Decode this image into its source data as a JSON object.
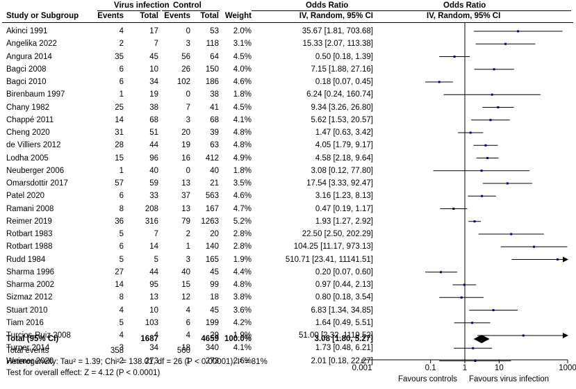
{
  "header": {
    "group_virus": "Virus infection",
    "group_control": "Control",
    "group_or": "Odds Ratio",
    "group_or_plot": "Odds Ratio",
    "col_study": "Study or Subgroup",
    "col_events1": "Events",
    "col_total1": "Total",
    "col_events2": "Events",
    "col_total2": "Total",
    "col_weight": "Weight",
    "col_or": "IV, Random, 95% CI",
    "col_or_plot": "IV, Random, 95% CI"
  },
  "rows": [
    {
      "study": "Akinci 1991",
      "e1": "4",
      "t1": "17",
      "e2": "0",
      "t2": "53",
      "weight": "2.0%",
      "ci_text": "35.67 [1.81, 703.68]"
    },
    {
      "study": "Angelika 2022",
      "e1": "2",
      "t1": "7",
      "e2": "3",
      "t2": "118",
      "weight": "3.1%",
      "ci_text": "15.33 [2.07, 113.38]"
    },
    {
      "study": "Angura 2014",
      "e1": "35",
      "t1": "45",
      "e2": "56",
      "t2": "64",
      "weight": "4.5%",
      "ci_text": "0.50 [0.18, 1.39]"
    },
    {
      "study": "Bagci 2008",
      "e1": "6",
      "t1": "10",
      "e2": "26",
      "t2": "150",
      "weight": "4.0%",
      "ci_text": "7.15 [1.88, 27.16]"
    },
    {
      "study": "Bagci 2010",
      "e1": "6",
      "t1": "34",
      "e2": "102",
      "t2": "186",
      "weight": "4.6%",
      "ci_text": "0.18 [0.07, 0.45]"
    },
    {
      "study": "Birenbaum 1997",
      "e1": "1",
      "t1": "19",
      "e2": "0",
      "t2": "38",
      "weight": "1.8%",
      "ci_text": "6.24 [0.24, 160.74]"
    },
    {
      "study": "Chany 1982",
      "e1": "25",
      "t1": "38",
      "e2": "7",
      "t2": "41",
      "weight": "4.5%",
      "ci_text": "9.34 [3.26, 26.80]"
    },
    {
      "study": "Chappé 2011",
      "e1": "14",
      "t1": "68",
      "e2": "3",
      "t2": "68",
      "weight": "4.1%",
      "ci_text": "5.62 [1.53, 20.57]"
    },
    {
      "study": "Cheng 2020",
      "e1": "31",
      "t1": "51",
      "e2": "20",
      "t2": "39",
      "weight": "4.8%",
      "ci_text": "1.47 [0.63, 3.42]"
    },
    {
      "study": "de Villiers 2012",
      "e1": "28",
      "t1": "44",
      "e2": "19",
      "t2": "63",
      "weight": "4.8%",
      "ci_text": "4.05 [1.79, 9.17]"
    },
    {
      "study": "Lodha 2005",
      "e1": "15",
      "t1": "96",
      "e2": "16",
      "t2": "412",
      "weight": "4.9%",
      "ci_text": "4.58 [2.18, 9.64]"
    },
    {
      "study": "Neuberger 2006",
      "e1": "1",
      "t1": "40",
      "e2": "0",
      "t2": "40",
      "weight": "1.8%",
      "ci_text": "3.08 [0.12, 77.80]"
    },
    {
      "study": "Omarsdottir 2017",
      "e1": "57",
      "t1": "59",
      "e2": "13",
      "t2": "21",
      "weight": "3.5%",
      "ci_text": "17.54 [3.33, 92.47]"
    },
    {
      "study": "Patel 2020",
      "e1": "6",
      "t1": "33",
      "e2": "37",
      "t2": "563",
      "weight": "4.6%",
      "ci_text": "3.16 [1.23, 8.13]"
    },
    {
      "study": "Ramani 2008",
      "e1": "8",
      "t1": "208",
      "e2": "13",
      "t2": "167",
      "weight": "4.7%",
      "ci_text": "0.47 [0.19, 1.17]"
    },
    {
      "study": "Reimer 2019",
      "e1": "36",
      "t1": "316",
      "e2": "79",
      "t2": "1263",
      "weight": "5.2%",
      "ci_text": "1.93 [1.27, 2.92]"
    },
    {
      "study": "Rotbart 1983",
      "e1": "5",
      "t1": "7",
      "e2": "2",
      "t2": "20",
      "weight": "2.8%",
      "ci_text": "22.50 [2.50, 202.29]"
    },
    {
      "study": "Rotbart 1988",
      "e1": "6",
      "t1": "14",
      "e2": "1",
      "t2": "140",
      "weight": "2.8%",
      "ci_text": "104.25 [11.17, 973.13]"
    },
    {
      "study": "Rudd 1984",
      "e1": "5",
      "t1": "5",
      "e2": "3",
      "t2": "165",
      "weight": "1.9%",
      "ci_text": "510.71 [23.41, 11141.51]"
    },
    {
      "study": "Sharma 1996",
      "e1": "27",
      "t1": "44",
      "e2": "40",
      "t2": "45",
      "weight": "4.4%",
      "ci_text": "0.20 [0.07, 0.60]"
    },
    {
      "study": "Sharma 2002",
      "e1": "14",
      "t1": "95",
      "e2": "15",
      "t2": "99",
      "weight": "4.8%",
      "ci_text": "0.97 [0.44, 2.13]"
    },
    {
      "study": "Sizmaz 2012",
      "e1": "8",
      "t1": "13",
      "e2": "12",
      "t2": "18",
      "weight": "3.8%",
      "ci_text": "0.80 [0.18, 3.54]"
    },
    {
      "study": "Stuart 2010",
      "e1": "4",
      "t1": "10",
      "e2": "4",
      "t2": "45",
      "weight": "3.6%",
      "ci_text": "6.83 [1.34, 34.85]"
    },
    {
      "study": "Tiam 2016",
      "e1": "5",
      "t1": "103",
      "e2": "6",
      "t2": "199",
      "weight": "4.2%",
      "ci_text": "1.64 [0.49, 5.51]"
    },
    {
      "study": "Turcios-Ruiz 2008",
      "e1": "4",
      "t1": "4",
      "e2": "4",
      "t2": "29",
      "weight": "1.9%",
      "ci_text": "51.00 [2.32, 1119.52]"
    },
    {
      "study": "Turner 2014",
      "e1": "3",
      "t1": "34",
      "e2": "18",
      "t2": "340",
      "weight": "4.1%",
      "ci_text": "1.73 [0.48, 6.21]"
    },
    {
      "study": "Weimer 2020",
      "e1": "2",
      "t1": "273",
      "e2": "1",
      "t2": "273",
      "weight": "2.6%",
      "ci_text": "2.01 [0.18, 22.27]"
    }
  ],
  "total": {
    "label": "Total (95% CI)",
    "t1": "1687",
    "t2": "4659",
    "weight": "100.0%",
    "ci_text": "3.08 [1.80, 5.27]",
    "events_label": "Total events",
    "e1": "358",
    "e2": "500"
  },
  "footer": {
    "heterogeneity": "Heterogeneity: Tau² = 1.39; Chi² = 138.01, df = 26 (P < 0.00001); I² = 81%",
    "overall": "Test for overall effect: Z = 4.12 (P < 0.0001)"
  },
  "axis": {
    "ticks": [
      "0.001",
      "0.1",
      "1",
      "10",
      "1000"
    ],
    "favours_left": "Favours controls",
    "favours_right": "Favours virus infection"
  },
  "chart_data": {
    "type": "scatter",
    "scale": "log",
    "xlim": [
      0.001,
      1000
    ],
    "xticks": [
      0.001,
      0.1,
      1,
      10,
      1000
    ],
    "reference_line": 1,
    "marker_color": "#00008b",
    "studies": [
      {
        "name": "Akinci 1991",
        "or": 35.67,
        "lo": 1.81,
        "hi": 703.68
      },
      {
        "name": "Angelika 2022",
        "or": 15.33,
        "lo": 2.07,
        "hi": 113.38
      },
      {
        "name": "Angura 2014",
        "or": 0.5,
        "lo": 0.18,
        "hi": 1.39
      },
      {
        "name": "Bagci 2008",
        "or": 7.15,
        "lo": 1.88,
        "hi": 27.16
      },
      {
        "name": "Bagci 2010",
        "or": 0.18,
        "lo": 0.07,
        "hi": 0.45
      },
      {
        "name": "Birenbaum 1997",
        "or": 6.24,
        "lo": 0.24,
        "hi": 160.74
      },
      {
        "name": "Chany 1982",
        "or": 9.34,
        "lo": 3.26,
        "hi": 26.8
      },
      {
        "name": "Chappé 2011",
        "or": 5.62,
        "lo": 1.53,
        "hi": 20.57
      },
      {
        "name": "Cheng 2020",
        "or": 1.47,
        "lo": 0.63,
        "hi": 3.42
      },
      {
        "name": "de Villiers 2012",
        "or": 4.05,
        "lo": 1.79,
        "hi": 9.17
      },
      {
        "name": "Lodha 2005",
        "or": 4.58,
        "lo": 2.18,
        "hi": 9.64
      },
      {
        "name": "Neuberger 2006",
        "or": 3.08,
        "lo": 0.12,
        "hi": 77.8
      },
      {
        "name": "Omarsdottir 2017",
        "or": 17.54,
        "lo": 3.33,
        "hi": 92.47
      },
      {
        "name": "Patel 2020",
        "or": 3.16,
        "lo": 1.23,
        "hi": 8.13
      },
      {
        "name": "Ramani 2008",
        "or": 0.47,
        "lo": 0.19,
        "hi": 1.17
      },
      {
        "name": "Reimer 2019",
        "or": 1.93,
        "lo": 1.27,
        "hi": 2.92
      },
      {
        "name": "Rotbart 1983",
        "or": 22.5,
        "lo": 2.5,
        "hi": 202.29
      },
      {
        "name": "Rotbart 1988",
        "or": 104.25,
        "lo": 11.17,
        "hi": 973.13
      },
      {
        "name": "Rudd 1984",
        "or": 510.71,
        "lo": 23.41,
        "hi": 11141.51
      },
      {
        "name": "Sharma 1996",
        "or": 0.2,
        "lo": 0.07,
        "hi": 0.6
      },
      {
        "name": "Sharma 2002",
        "or": 0.97,
        "lo": 0.44,
        "hi": 2.13
      },
      {
        "name": "Sizmaz 2012",
        "or": 0.8,
        "lo": 0.18,
        "hi": 3.54
      },
      {
        "name": "Stuart 2010",
        "or": 6.83,
        "lo": 1.34,
        "hi": 34.85
      },
      {
        "name": "Tiam 2016",
        "or": 1.64,
        "lo": 0.49,
        "hi": 5.51
      },
      {
        "name": "Turcios-Ruiz 2008",
        "or": 51.0,
        "lo": 2.32,
        "hi": 1119.52
      },
      {
        "name": "Turner 2014",
        "or": 1.73,
        "lo": 0.48,
        "hi": 6.21
      },
      {
        "name": "Weimer 2020",
        "or": 2.01,
        "lo": 0.18,
        "hi": 22.27
      }
    ],
    "summary": {
      "or": 3.08,
      "lo": 1.8,
      "hi": 5.27
    }
  }
}
